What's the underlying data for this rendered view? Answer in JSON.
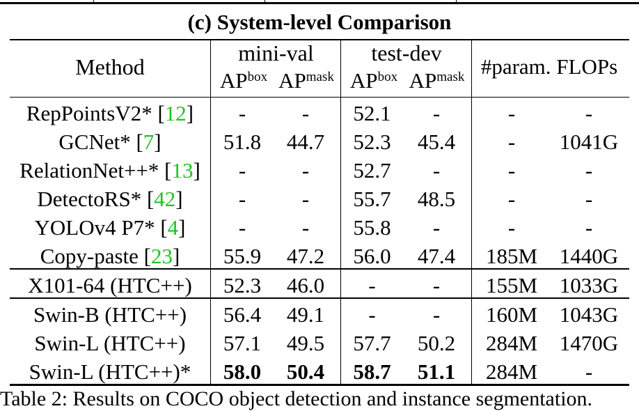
{
  "table": {
    "title": "(c) System-level Comparison",
    "headers": {
      "method": "Method",
      "group1": "mini-val",
      "group2": "test-dev",
      "param_flops": "#param. FLOPs",
      "ap": "AP",
      "box": "box",
      "mask": "mask"
    },
    "rows": [
      {
        "name": "RepPointsV2*",
        "cite": "12",
        "v": [
          "-",
          "-",
          "52.1",
          "-",
          "-",
          "-"
        ]
      },
      {
        "name": "GCNet*",
        "cite": "7",
        "v": [
          "51.8",
          "44.7",
          "52.3",
          "45.4",
          "-",
          "1041G"
        ]
      },
      {
        "name": "RelationNet++*",
        "cite": "13",
        "v": [
          "-",
          "-",
          "52.7",
          "-",
          "-",
          "-"
        ]
      },
      {
        "name": "DetectoRS*",
        "cite": "42",
        "v": [
          "-",
          "-",
          "55.7",
          "48.5",
          "-",
          "-"
        ]
      },
      {
        "name": "YOLOv4 P7*",
        "cite": "4",
        "v": [
          "-",
          "-",
          "55.8",
          "-",
          "-",
          "-"
        ]
      },
      {
        "name": "Copy-paste",
        "cite": "23",
        "v": [
          "55.9",
          "47.2",
          "56.0",
          "47.4",
          "185M",
          "1440G"
        ]
      },
      {
        "name": "X101-64 (HTC++)",
        "cite": "",
        "v": [
          "52.3",
          "46.0",
          "-",
          "-",
          "155M",
          "1033G"
        ]
      },
      {
        "name": "Swin-B (HTC++)",
        "cite": "",
        "v": [
          "56.4",
          "49.1",
          "-",
          "-",
          "160M",
          "1043G"
        ]
      },
      {
        "name": "Swin-L (HTC++)",
        "cite": "",
        "v": [
          "57.1",
          "49.5",
          "57.7",
          "50.2",
          "284M",
          "1470G"
        ]
      },
      {
        "name": "Swin-L (HTC++)*",
        "cite": "",
        "v": [
          "58.0",
          "50.4",
          "58.7",
          "51.1",
          "284M",
          "-"
        ],
        "bold": [
          true,
          true,
          true,
          true,
          false,
          false
        ]
      }
    ]
  },
  "caption": "Table 2: Results on COCO object detection and instance segmentation."
}
